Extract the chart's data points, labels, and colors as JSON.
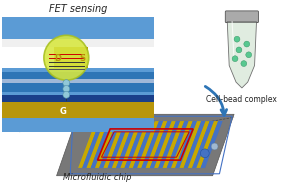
{
  "bg_color": "#ffffff",
  "fet_label": "FET sensing",
  "chip_label": "Microfluidic chip",
  "vial_label": "Cell-bead complex",
  "colors": {
    "blue_light": "#5b9bd5",
    "blue_dark": "#2e75b6",
    "blue_mid": "#4472c4",
    "gold": "#b8960c",
    "gold2": "#c8a800",
    "white": "#ffffff",
    "gray_chip": "#808080",
    "gray_dark": "#606060",
    "red_outline": "#cc0000",
    "yellow_green": "#d4e020",
    "arrow_blue": "#2e75b6",
    "vial_gray": "#909090",
    "vial_fill": "#e0ece0",
    "dot_green": "#58c890",
    "dot_blue": "#70a8c8",
    "bead_color": "#90c8d8"
  }
}
